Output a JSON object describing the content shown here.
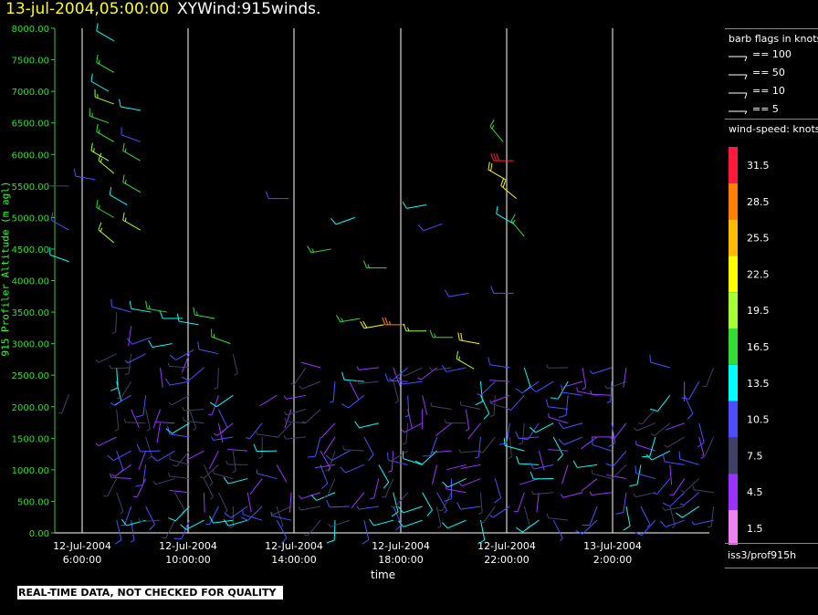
{
  "header": {
    "date": "13-jul-2004,05:00:00",
    "title": "XYWind:915winds."
  },
  "chart_data": {
    "type": "scatter",
    "title": "XYWind:915winds.",
    "xlabel": "time",
    "ylabel": "915 Profiler Altitude (m agl)",
    "ylim": [
      0,
      8000
    ],
    "y_ticks": [
      "0.00",
      "500.00",
      "1000.00",
      "1500.00",
      "2000.00",
      "2500.00",
      "3000.00",
      "3500.00",
      "4000.00",
      "4500.00",
      "5000.00",
      "5500.00",
      "6000.00",
      "6500.00",
      "7000.00",
      "7500.00",
      "8000.00"
    ],
    "x_ticks": [
      {
        "date": "12-Jul-2004",
        "time": "6:00:00"
      },
      {
        "date": "12-Jul-2004",
        "time": "10:00:00"
      },
      {
        "date": "12-Jul-2004",
        "time": "14:00:00"
      },
      {
        "date": "12-Jul-2004",
        "time": "18:00:00"
      },
      {
        "date": "12-Jul-2004",
        "time": "22:00:00"
      },
      {
        "date": "13-Jul-2004",
        "time": "2:00:00"
      }
    ],
    "grid": "vertical lines at time ticks",
    "series": [
      {
        "name": "wind barbs",
        "points": [
          {
            "t": -0.5,
            "alt": 4800,
            "spd": 10.5,
            "dir": 300
          },
          {
            "t": -0.5,
            "alt": 4300,
            "spd": 13.5,
            "dir": 290
          },
          {
            "t": -0.5,
            "alt": 5500,
            "spd": 7.5,
            "dir": 270
          },
          {
            "t": -0.5,
            "alt": 2200,
            "spd": 7.5,
            "dir": 200
          },
          {
            "t": 0.5,
            "alt": 5600,
            "spd": 10.5,
            "dir": 280
          },
          {
            "t": 1.2,
            "alt": 7800,
            "spd": 13.5,
            "dir": 300
          },
          {
            "t": 1.2,
            "alt": 7300,
            "spd": 16.5,
            "dir": 300
          },
          {
            "t": 1.2,
            "alt": 6800,
            "spd": 19.5,
            "dir": 290
          },
          {
            "t": 1.2,
            "alt": 6200,
            "spd": 16.5,
            "dir": 300
          },
          {
            "t": 1.2,
            "alt": 5700,
            "spd": 19.5,
            "dir": 310
          },
          {
            "t": 1.2,
            "alt": 5000,
            "spd": 16.5,
            "dir": 300
          },
          {
            "t": 1.2,
            "alt": 4600,
            "spd": 19.5,
            "dir": 310
          },
          {
            "t": 1.0,
            "alt": 7000,
            "spd": 13.5,
            "dir": 300
          },
          {
            "t": 1.0,
            "alt": 6500,
            "spd": 16.5,
            "dir": 290
          },
          {
            "t": 1.0,
            "alt": 5900,
            "spd": 19.5,
            "dir": 300
          },
          {
            "t": 2.2,
            "alt": 6700,
            "spd": 13.5,
            "dir": 280
          },
          {
            "t": 2.2,
            "alt": 6200,
            "spd": 10.5,
            "dir": 290
          },
          {
            "t": 2.2,
            "alt": 5900,
            "spd": 16.5,
            "dir": 300
          },
          {
            "t": 2.2,
            "alt": 5400,
            "spd": 16.5,
            "dir": 300
          },
          {
            "t": 2.2,
            "alt": 4800,
            "spd": 19.5,
            "dir": 300
          },
          {
            "t": 1.7,
            "alt": 5200,
            "spd": 13.5,
            "dir": 300
          },
          {
            "t": 2.6,
            "alt": 3500,
            "spd": 13.5,
            "dir": 280
          },
          {
            "t": 3.2,
            "alt": 3500,
            "spd": 16.5,
            "dir": 280
          },
          {
            "t": 3.8,
            "alt": 3400,
            "spd": 13.5,
            "dir": 270
          },
          {
            "t": 4.4,
            "alt": 3300,
            "spd": 13.5,
            "dir": 280
          },
          {
            "t": 5.0,
            "alt": 3400,
            "spd": 16.5,
            "dir": 280
          },
          {
            "t": 5.6,
            "alt": 3000,
            "spd": 16.5,
            "dir": 290
          },
          {
            "t": 2.6,
            "alt": 3100,
            "spd": 10.5,
            "dir": 250
          },
          {
            "t": 3.4,
            "alt": 3000,
            "spd": 13.5,
            "dir": 260
          },
          {
            "t": 4.2,
            "alt": 2900,
            "spd": 10.5,
            "dir": 240
          },
          {
            "t": 7.8,
            "alt": 5300,
            "spd": 10.5,
            "dir": 270
          },
          {
            "t": 9.4,
            "alt": 4500,
            "spd": 16.5,
            "dir": 260
          },
          {
            "t": 10.3,
            "alt": 5000,
            "spd": 13.5,
            "dir": 250
          },
          {
            "t": 11.5,
            "alt": 4200,
            "spd": 16.5,
            "dir": 270
          },
          {
            "t": 13.0,
            "alt": 5200,
            "spd": 13.5,
            "dir": 260
          },
          {
            "t": 13.6,
            "alt": 4900,
            "spd": 10.5,
            "dir": 250
          },
          {
            "t": 14.6,
            "alt": 3800,
            "spd": 10.5,
            "dir": 260
          },
          {
            "t": 16.3,
            "alt": 3800,
            "spd": 10.5,
            "dir": 270
          },
          {
            "t": 10.5,
            "alt": 3400,
            "spd": 16.5,
            "dir": 260
          },
          {
            "t": 11.4,
            "alt": 3300,
            "spd": 22.5,
            "dir": 260
          },
          {
            "t": 12.2,
            "alt": 3300,
            "spd": 28.5,
            "dir": 270
          },
          {
            "t": 13.0,
            "alt": 3200,
            "spd": 19.5,
            "dir": 270
          },
          {
            "t": 14.0,
            "alt": 3100,
            "spd": 16.5,
            "dir": 270
          },
          {
            "t": 15.0,
            "alt": 3000,
            "spd": 22.5,
            "dir": 280
          },
          {
            "t": 14.8,
            "alt": 2600,
            "spd": 19.5,
            "dir": 300
          },
          {
            "t": 15.9,
            "alt": 6200,
            "spd": 16.5,
            "dir": 320
          },
          {
            "t": 16.3,
            "alt": 5900,
            "spd": 31.5,
            "dir": 270
          },
          {
            "t": 16.0,
            "alt": 5600,
            "spd": 22.5,
            "dir": 300
          },
          {
            "t": 16.4,
            "alt": 5300,
            "spd": 22.5,
            "dir": 310
          },
          {
            "t": 16.3,
            "alt": 4900,
            "spd": 13.5,
            "dir": 300
          },
          {
            "t": 16.7,
            "alt": 4700,
            "spd": 16.5,
            "dir": 320
          }
        ]
      }
    ]
  },
  "legend": {
    "barb_title": "barb flags in knots",
    "barbs": [
      {
        "label": "== 100",
        "kind": "pennant"
      },
      {
        "label": "== 50",
        "kind": "pennant-small"
      },
      {
        "label": "== 10",
        "kind": "full"
      },
      {
        "label": "== 5",
        "kind": "half"
      }
    ],
    "speed_title": "wind-speed: knots",
    "colorbar": [
      {
        "label": "31.5",
        "color": "#ff1a3c"
      },
      {
        "label": "28.5",
        "color": "#ff8000"
      },
      {
        "label": "25.5",
        "color": "#ffbb00"
      },
      {
        "label": "22.5",
        "color": "#ffff00"
      },
      {
        "label": "19.5",
        "color": "#a6ff33"
      },
      {
        "label": "16.5",
        "color": "#33dd33"
      },
      {
        "label": "13.5",
        "color": "#00ffff"
      },
      {
        "label": "10.5",
        "color": "#4d4dff"
      },
      {
        "label": "7.5",
        "color": "#404066"
      },
      {
        "label": "4.5",
        "color": "#9933ff"
      },
      {
        "label": "1.5",
        "color": "#ee82ee"
      }
    ],
    "source": "iss3/prof915h"
  },
  "footer": {
    "disclaimer": "REAL-TIME DATA, NOT CHECKED FOR QUALITY"
  }
}
